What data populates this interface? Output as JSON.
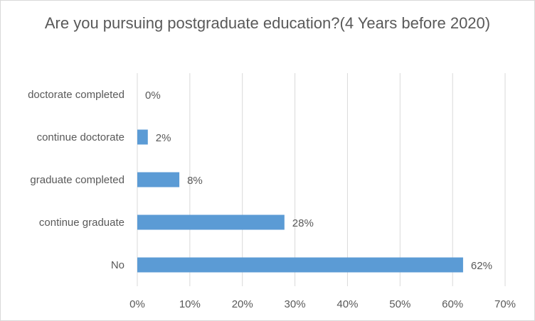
{
  "chart_data": {
    "type": "bar",
    "orientation": "horizontal",
    "title": "Are you pursuing postgraduate education?(4 Years before 2020)",
    "categories": [
      "doctorate completed",
      "continue doctorate",
      "graduate completed",
      "continue graduate",
      "No"
    ],
    "values": [
      0,
      2,
      8,
      28,
      62
    ],
    "data_labels": [
      "0%",
      "2%",
      "8%",
      "28%",
      "62%"
    ],
    "x_ticks": [
      "0%",
      "10%",
      "20%",
      "30%",
      "40%",
      "50%",
      "60%",
      "70%"
    ],
    "xlim": [
      0,
      70
    ],
    "grid": "vertical",
    "legend": "none",
    "bar_color": "#5b9bd5",
    "grid_color": "#d9d9d9",
    "text_color": "#595959"
  }
}
